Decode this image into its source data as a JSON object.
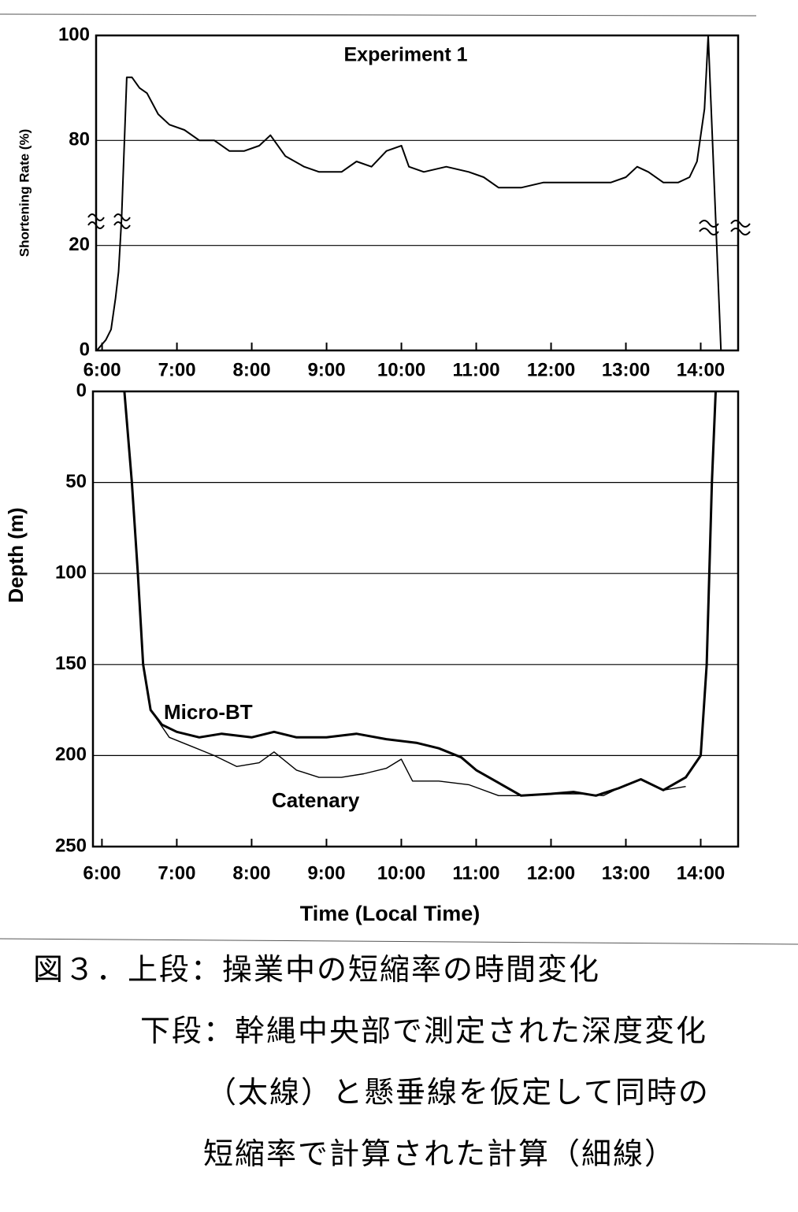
{
  "chart_data": [
    {
      "type": "line",
      "title": "Experiment 1",
      "ylabel": "Shortening Rate (%)",
      "xlim": [
        5.92,
        14.5
      ],
      "xticks": [
        {
          "value": 6,
          "label": "6:00"
        },
        {
          "value": 7,
          "label": "7:00"
        },
        {
          "value": 8,
          "label": "8:00"
        },
        {
          "value": 9,
          "label": "9:00"
        },
        {
          "value": 10,
          "label": "10:00"
        },
        {
          "value": 11,
          "label": "11:00"
        },
        {
          "value": 12,
          "label": "12:00"
        },
        {
          "value": 13,
          "label": "13:00"
        },
        {
          "value": 14,
          "label": "14:00"
        }
      ],
      "ylim": [
        0,
        100
      ],
      "y_break": [
        25,
        65
      ],
      "yticks": [
        0,
        20,
        80,
        100
      ],
      "grid": true,
      "series": [
        {
          "color": "#000000",
          "x": [
            5.93,
            6.05,
            6.12,
            6.18,
            6.22,
            6.26,
            6.33,
            6.4,
            6.5,
            6.6,
            6.75,
            6.9,
            7.1,
            7.3,
            7.5,
            7.7,
            7.9,
            8.1,
            8.25,
            8.45,
            8.7,
            8.9,
            9.2,
            9.4,
            9.6,
            9.8,
            10.0,
            10.1,
            10.3,
            10.6,
            10.9,
            11.1,
            11.3,
            11.6,
            11.9,
            12.2,
            12.5,
            12.8,
            13.0,
            13.15,
            13.3,
            13.5,
            13.7,
            13.85,
            13.95,
            14.05,
            14.1,
            14.2,
            14.27,
            14.45
          ],
          "values": [
            0,
            2,
            4,
            10,
            15,
            25,
            92,
            92,
            90,
            89,
            85,
            83,
            82,
            80,
            80,
            78,
            78,
            79,
            81,
            77,
            75,
            74,
            74,
            76,
            75,
            78,
            79,
            75,
            74,
            75,
            74,
            73,
            71,
            71,
            72,
            72,
            72,
            72,
            73,
            75,
            74,
            72,
            72,
            73,
            76,
            86,
            100,
            25,
            0,
            0
          ]
        }
      ]
    },
    {
      "type": "line",
      "ylabel": "Depth (m)",
      "xlabel": "Time (Local Time)",
      "xlim": [
        5.88,
        14.5
      ],
      "xticks": [
        {
          "value": 6,
          "label": "6:00"
        },
        {
          "value": 7,
          "label": "7:00"
        },
        {
          "value": 8,
          "label": "8:00"
        },
        {
          "value": 9,
          "label": "9:00"
        },
        {
          "value": 10,
          "label": "10:00"
        },
        {
          "value": 11,
          "label": "11:00"
        },
        {
          "value": 12,
          "label": "12:00"
        },
        {
          "value": 13,
          "label": "13:00"
        },
        {
          "value": 14,
          "label": "14:00"
        }
      ],
      "ylim": [
        0,
        250
      ],
      "y_reversed": true,
      "yticks": [
        0,
        50,
        100,
        150,
        200,
        250
      ],
      "grid": true,
      "series": [
        {
          "name": "Micro-BT",
          "color": "#000000",
          "x": [
            6.3,
            6.4,
            6.48,
            6.55,
            6.65,
            6.8,
            7.0,
            7.3,
            7.6,
            8.0,
            8.3,
            8.6,
            9.0,
            9.4,
            9.8,
            10.2,
            10.5,
            10.8,
            11.0,
            11.3,
            11.6,
            12.0,
            12.3,
            12.6,
            12.9,
            13.2,
            13.5,
            13.8,
            14.0,
            14.08,
            14.15,
            14.2
          ],
          "values": [
            0,
            50,
            100,
            150,
            175,
            183,
            187,
            190,
            188,
            190,
            187,
            190,
            190,
            188,
            191,
            193,
            196,
            201,
            208,
            215,
            222,
            221,
            220,
            222,
            218,
            213,
            219,
            212,
            200,
            150,
            50,
            0
          ]
        },
        {
          "name": "Catenary",
          "color": "#000000",
          "x": [
            6.7,
            6.9,
            7.2,
            7.5,
            7.8,
            8.1,
            8.3,
            8.6,
            8.9,
            9.2,
            9.5,
            9.8,
            10.0,
            10.15,
            10.5,
            10.9,
            11.3,
            11.7,
            12.0,
            12.4,
            12.7,
            13.0,
            13.2,
            13.5,
            13.8
          ],
          "values": [
            178,
            190,
            195,
            200,
            206,
            204,
            198,
            208,
            212,
            212,
            210,
            207,
            202,
            214,
            214,
            216,
            222,
            222,
            221,
            221,
            222,
            216,
            213,
            219,
            217
          ]
        }
      ]
    }
  ],
  "caption": {
    "lines": [
      "図３．上段：操業中の短縮率の時間変化",
      "下段：幹縄中央部で測定された深度変化",
      "（太線）と懸垂線を仮定して同時の",
      "短縮率で計算された計算（細線）"
    ]
  }
}
